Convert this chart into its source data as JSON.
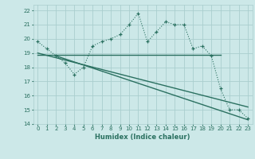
{
  "xlabel": "Humidex (Indice chaleur)",
  "xlim": [
    -0.5,
    23.5
  ],
  "ylim": [
    14,
    22.4
  ],
  "yticks": [
    14,
    15,
    16,
    17,
    18,
    19,
    20,
    21,
    22
  ],
  "xticks": [
    0,
    1,
    2,
    3,
    4,
    5,
    6,
    7,
    8,
    9,
    10,
    11,
    12,
    13,
    14,
    15,
    16,
    17,
    18,
    19,
    20,
    21,
    22,
    23
  ],
  "bg_color": "#cce8e8",
  "grid_color": "#aacece",
  "line_color": "#2a7060",
  "curve1_x": [
    0,
    1,
    2,
    3,
    4,
    5,
    6,
    7,
    8,
    9,
    10,
    11,
    12,
    13,
    14,
    15,
    16,
    17,
    18,
    19,
    20,
    21,
    22,
    23
  ],
  "curve1_y": [
    19.8,
    19.3,
    18.8,
    18.3,
    17.5,
    18.0,
    19.5,
    19.8,
    20.0,
    20.3,
    21.0,
    21.8,
    19.8,
    20.5,
    21.2,
    21.0,
    21.0,
    19.3,
    19.5,
    18.8,
    16.5,
    15.0,
    15.0,
    14.4
  ],
  "curve2_x": [
    0,
    20
  ],
  "curve2_y": [
    18.9,
    18.9
  ],
  "curve3_x": [
    0,
    23
  ],
  "curve3_y": [
    19.0,
    15.2
  ],
  "curve4_x": [
    2,
    23
  ],
  "curve4_y": [
    18.8,
    14.3
  ]
}
